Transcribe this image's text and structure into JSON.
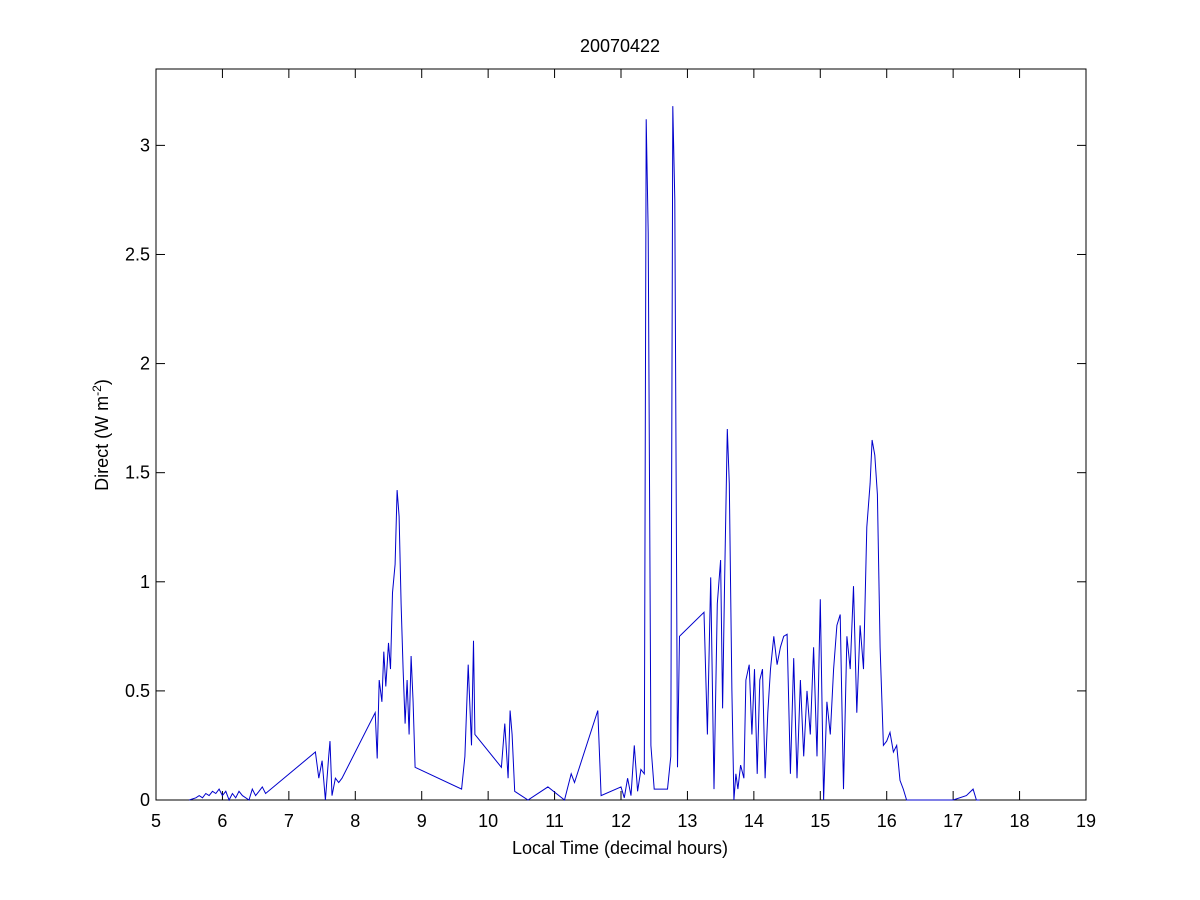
{
  "chart_data": {
    "type": "line",
    "title": "20070422",
    "xlabel": "Local Time (decimal hours)",
    "ylabel_main": "Direct (W m",
    "ylabel_sup": "-2",
    "ylabel_close": ")",
    "xlim": [
      5,
      19
    ],
    "ylim": [
      0,
      3.35
    ],
    "xticks": [
      5,
      6,
      7,
      8,
      9,
      10,
      11,
      12,
      13,
      14,
      15,
      16,
      17,
      18,
      19
    ],
    "yticks": [
      0,
      0.5,
      1,
      1.5,
      2,
      2.5,
      3
    ],
    "ytick_labels": [
      "0",
      "0.5",
      "1",
      "1.5",
      "2",
      "2.5",
      "3"
    ],
    "grid": false,
    "line_color": "#0000cc",
    "series": [
      {
        "x": [
          5.5,
          5.6,
          5.65,
          5.7,
          5.75,
          5.8,
          5.85,
          5.9,
          5.95,
          6.0,
          6.05,
          6.1,
          6.15,
          6.2,
          6.25,
          6.3,
          6.4,
          6.45,
          6.5,
          6.55,
          6.6,
          6.65,
          7.4,
          7.45,
          7.5,
          7.55,
          7.6,
          7.62,
          7.65,
          7.7,
          7.75,
          7.8,
          8.3,
          8.33,
          8.36,
          8.4,
          8.43,
          8.46,
          8.5,
          8.53,
          8.56,
          8.6,
          8.63,
          8.66,
          8.69,
          8.72,
          8.75,
          8.78,
          8.81,
          8.84,
          8.87,
          8.9,
          9.6,
          9.65,
          9.7,
          9.75,
          9.78,
          9.8,
          10.2,
          10.25,
          10.3,
          10.33,
          10.36,
          10.4,
          10.6,
          10.9,
          11.15,
          11.25,
          11.3,
          11.65,
          11.7,
          12.0,
          12.05,
          12.1,
          12.15,
          12.2,
          12.25,
          12.3,
          12.35,
          12.38,
          12.41,
          12.45,
          12.5,
          12.7,
          12.75,
          12.78,
          12.81,
          12.85,
          12.88,
          13.25,
          13.3,
          13.35,
          13.4,
          13.45,
          13.5,
          13.53,
          13.56,
          13.6,
          13.63,
          13.67,
          13.7,
          13.73,
          13.76,
          13.8,
          13.85,
          13.88,
          13.93,
          13.97,
          14.01,
          14.05,
          14.09,
          14.13,
          14.17,
          14.21,
          14.25,
          14.3,
          14.35,
          14.4,
          14.45,
          14.5,
          14.55,
          14.6,
          14.65,
          14.7,
          14.75,
          14.8,
          14.85,
          14.9,
          14.95,
          15.0,
          15.05,
          15.1,
          15.15,
          15.2,
          15.25,
          15.3,
          15.35,
          15.4,
          15.45,
          15.5,
          15.55,
          15.6,
          15.65,
          15.7,
          15.75,
          15.78,
          15.82,
          15.86,
          15.9,
          15.95,
          16.0,
          16.05,
          16.1,
          16.15,
          16.2,
          16.25,
          16.3,
          17.0,
          17.2,
          17.3,
          17.35,
          17.4
        ],
        "y": [
          0.0,
          0.01,
          0.02,
          0.01,
          0.03,
          0.02,
          0.04,
          0.03,
          0.05,
          0.02,
          0.04,
          0.0,
          0.03,
          0.01,
          0.04,
          0.02,
          0.0,
          0.05,
          0.02,
          0.04,
          0.06,
          0.03,
          0.22,
          0.1,
          0.18,
          0.0,
          0.2,
          0.27,
          0.02,
          0.1,
          0.08,
          0.1,
          0.4,
          0.19,
          0.55,
          0.45,
          0.68,
          0.52,
          0.72,
          0.6,
          0.95,
          1.08,
          1.42,
          1.3,
          0.9,
          0.6,
          0.35,
          0.55,
          0.3,
          0.66,
          0.45,
          0.15,
          0.05,
          0.2,
          0.62,
          0.25,
          0.73,
          0.3,
          0.15,
          0.35,
          0.1,
          0.41,
          0.3,
          0.04,
          0.0,
          0.06,
          0.0,
          0.12,
          0.08,
          0.41,
          0.02,
          0.06,
          0.01,
          0.1,
          0.02,
          0.25,
          0.04,
          0.14,
          0.12,
          3.12,
          2.6,
          0.25,
          0.05,
          0.05,
          0.2,
          3.18,
          2.75,
          0.15,
          0.75,
          0.86,
          0.3,
          1.02,
          0.05,
          0.9,
          1.1,
          0.42,
          1.0,
          1.7,
          1.45,
          0.5,
          0.0,
          0.12,
          0.05,
          0.16,
          0.1,
          0.55,
          0.62,
          0.3,
          0.6,
          0.12,
          0.55,
          0.6,
          0.1,
          0.4,
          0.6,
          0.75,
          0.62,
          0.7,
          0.75,
          0.76,
          0.12,
          0.65,
          0.1,
          0.55,
          0.2,
          0.5,
          0.3,
          0.7,
          0.2,
          0.92,
          0.0,
          0.45,
          0.3,
          0.6,
          0.8,
          0.85,
          0.05,
          0.75,
          0.6,
          0.98,
          0.4,
          0.8,
          0.6,
          1.25,
          1.45,
          1.65,
          1.58,
          1.4,
          0.7,
          0.25,
          0.27,
          0.31,
          0.22,
          0.25,
          0.09,
          0.05,
          0.0,
          0.0,
          0.02,
          0.05,
          0.0,
          0.0
        ]
      }
    ]
  }
}
